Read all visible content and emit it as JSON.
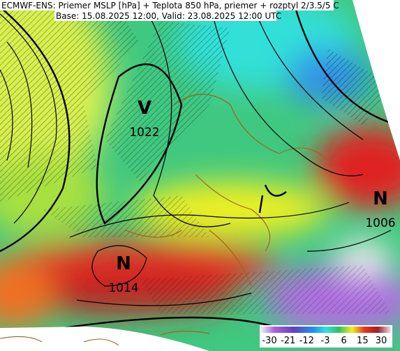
{
  "title": {
    "line1": "ECMWF-ENS: Priemer MSLP [hPa] + Teplota 850 hPa, priemer + rozptyl 2/3.5/5 C",
    "line2": "Base: 15.08.2025 12:00, Valid: 23.08.2025 12:00 UTC"
  },
  "pressure_centers": [
    {
      "letter": "V",
      "value": 1022
    },
    {
      "letter": "N",
      "value": 1006
    },
    {
      "letter": "N",
      "value": 1014
    }
  ],
  "colorbar": {
    "ticks": [
      -30,
      -21,
      -12,
      -3,
      6,
      15,
      30
    ]
  }
}
